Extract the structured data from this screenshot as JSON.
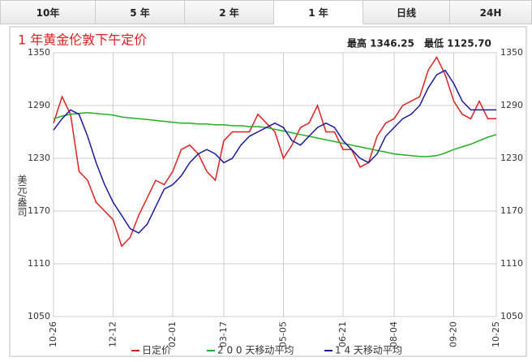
{
  "tabs": [
    "10年",
    "5 年",
    "2 年",
    "1 年",
    "日线",
    "24H"
  ],
  "active_tab": 3,
  "chart_data": {
    "type": "line",
    "title": "1 年黄金伦敦下午定价",
    "max_text": "最高 1346.25",
    "min_text": "最低 1125.70",
    "y_label": "美元/盎司",
    "categories": [
      "10-26",
      null,
      null,
      null,
      null,
      null,
      null,
      "12-12",
      null,
      null,
      null,
      null,
      null,
      null,
      "02-01",
      null,
      null,
      null,
      null,
      null,
      "03-17",
      null,
      null,
      null,
      null,
      null,
      null,
      "05-05",
      null,
      null,
      null,
      null,
      null,
      null,
      "06-21",
      null,
      null,
      null,
      null,
      null,
      "08-04",
      null,
      null,
      null,
      null,
      null,
      null,
      "09-20",
      null,
      null,
      null,
      null,
      "10-25"
    ],
    "series": [
      {
        "name": "日定价",
        "color": "#e02020",
        "values": [
          1270,
          1300,
          1280,
          1215,
          1205,
          1180,
          1170,
          1160,
          1130,
          1140,
          1165,
          1185,
          1205,
          1200,
          1215,
          1240,
          1245,
          1235,
          1215,
          1205,
          1250,
          1260,
          1260,
          1260,
          1280,
          1270,
          1260,
          1230,
          1245,
          1265,
          1270,
          1290,
          1260,
          1260,
          1240,
          1240,
          1220,
          1225,
          1255,
          1270,
          1275,
          1290,
          1295,
          1300,
          1330,
          1345,
          1325,
          1295,
          1280,
          1275,
          1295,
          1275,
          1275
        ]
      },
      {
        "name": "2 0 0 天移动平均",
        "color": "#20b020",
        "values": [
          1275,
          1278,
          1280,
          1281,
          1282,
          1281,
          1280,
          1279,
          1277,
          1276,
          1275,
          1274,
          1273,
          1272,
          1271,
          1270,
          1270,
          1269,
          1269,
          1268,
          1268,
          1267,
          1267,
          1266,
          1266,
          1265,
          1263,
          1261,
          1259,
          1257,
          1255,
          1253,
          1251,
          1249,
          1247,
          1245,
          1243,
          1241,
          1239,
          1237,
          1235,
          1234,
          1233,
          1232,
          1232,
          1233,
          1236,
          1240,
          1243,
          1246,
          1250,
          1254,
          1257
        ]
      },
      {
        "name": "1 4 天移动平均",
        "color": "#1a1aa0",
        "values": [
          1262,
          1275,
          1285,
          1280,
          1255,
          1225,
          1200,
          1180,
          1165,
          1150,
          1145,
          1155,
          1175,
          1195,
          1200,
          1210,
          1225,
          1235,
          1240,
          1235,
          1225,
          1230,
          1245,
          1255,
          1260,
          1265,
          1270,
          1265,
          1250,
          1245,
          1255,
          1265,
          1270,
          1265,
          1250,
          1240,
          1230,
          1225,
          1235,
          1255,
          1265,
          1275,
          1280,
          1290,
          1310,
          1325,
          1330,
          1315,
          1295,
          1285,
          1285,
          1285,
          1285
        ]
      }
    ],
    "ylim": [
      1050,
      1350
    ],
    "yticks": [
      1050,
      1110,
      1170,
      1230,
      1290,
      1350
    ],
    "grid": true
  }
}
